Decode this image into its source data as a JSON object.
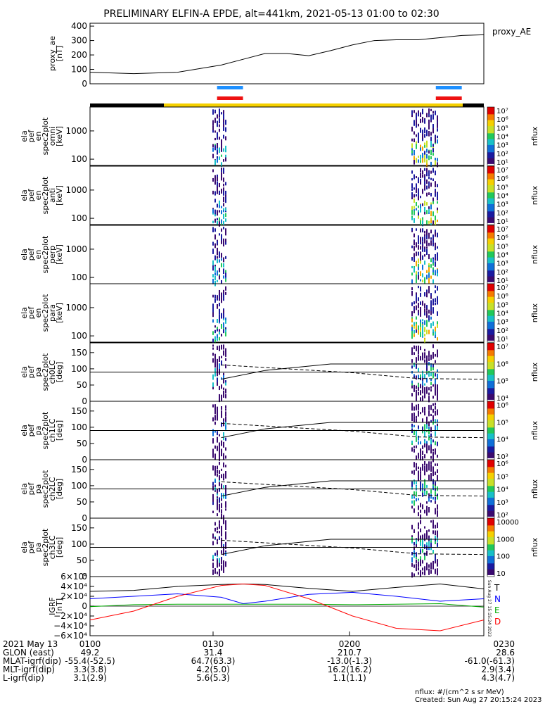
{
  "title": "PRELIMINARY ELFIN-A EPDE, alt=441km, 2021-05-13 01:00 to 02:30",
  "ae_panel": {
    "legend": "proxy_AE",
    "ylabel": [
      "proxy_ae",
      "[nT]"
    ],
    "ticks": [
      "400",
      "300",
      "200",
      "100",
      "0"
    ]
  },
  "energy_panels": [
    {
      "ylabel": [
        "ela",
        "pef",
        "en",
        "spec2plot",
        "omni",
        "[keV]"
      ]
    },
    {
      "ylabel": [
        "ela",
        "pef",
        "en",
        "spec2plot",
        "anti",
        "[keV]"
      ]
    },
    {
      "ylabel": [
        "ela",
        "pef",
        "en",
        "spec2plot",
        "perp",
        "[keV]"
      ]
    },
    {
      "ylabel": [
        "ela",
        "pef",
        "en",
        "spec2plot",
        "para",
        "[keV]"
      ]
    }
  ],
  "energy_ticks": [
    "1000",
    "100"
  ],
  "pa_panels": [
    {
      "ylabel": [
        "ela",
        "pef",
        "pa",
        "spec2plot",
        "ch0LC",
        "[deg]"
      ]
    },
    {
      "ylabel": [
        "ela",
        "pef",
        "pa",
        "spec2plot",
        "ch1LC",
        "[deg]"
      ]
    },
    {
      "ylabel": [
        "ela",
        "pef",
        "pa",
        "spec2plot",
        "ch2LC",
        "[deg]"
      ]
    },
    {
      "ylabel": [
        "ela",
        "pef",
        "pa",
        "spec2plot",
        "ch3LC",
        "[deg]"
      ]
    }
  ],
  "pa_ticks": [
    "150",
    "100",
    "50",
    "0"
  ],
  "colorbar_label": "nflux",
  "colorbars": [
    {
      "ticks": [
        "10⁷",
        "10⁶",
        "10⁵",
        "10⁴",
        "10³",
        "10²",
        "10¹"
      ]
    },
    {
      "ticks": [
        "10⁷",
        "10⁶",
        "10⁵",
        "10⁴",
        "10³",
        "10²",
        "10¹"
      ]
    },
    {
      "ticks": [
        "10⁷",
        "10⁶",
        "10⁵",
        "10⁴",
        "10³",
        "10²",
        "10¹"
      ]
    },
    {
      "ticks": [
        "10⁷",
        "10⁶",
        "10⁵",
        "10⁴",
        "10³",
        "10²",
        "10¹"
      ]
    },
    {
      "ticks": [
        "10⁷",
        "10⁶",
        "10⁵",
        "10⁴"
      ]
    },
    {
      "ticks": [
        "10⁶",
        "10⁵",
        "10⁴",
        "10³"
      ]
    },
    {
      "ticks": [
        "10⁶",
        "10⁵",
        "10⁴",
        "10³",
        "10²"
      ]
    },
    {
      "ticks": [
        "10000",
        "1000",
        "100",
        "10"
      ]
    }
  ],
  "igrf_panel": {
    "ylabel": [
      "IGRF",
      "[nT]"
    ],
    "ticks": [
      "6×10⁴",
      "4×10⁴",
      "2×10⁴",
      "0",
      "−2×10⁴",
      "−4×10⁴",
      "−6×10⁴"
    ],
    "legend": [
      "T",
      "N",
      "E",
      "D"
    ],
    "colors": [
      "#000000",
      "#0000ff",
      "#00aa00",
      "#ff0000"
    ],
    "side_stamp": "Sun Aug 27 15:15:24 2023"
  },
  "footer": {
    "rows": [
      {
        "label": "2021 May 13",
        "values": [
          "0100",
          "0130",
          "0200",
          "0230"
        ]
      },
      {
        "label": "GLON (east)",
        "values": [
          "49.2",
          "31.4",
          "210.7",
          "28.6"
        ]
      },
      {
        "label": "MLAT-igrf(dip)",
        "values": [
          "-55.4(-52.5)",
          "64.7(63.3)",
          "-13.0(-1.3)",
          "-61.0(-61.3)"
        ]
      },
      {
        "label": "MLT-igrf(dip)",
        "values": [
          "3.3(3.8)",
          "4.2(5.0)",
          "16.2(16.2)",
          "2.9(3.4)"
        ]
      },
      {
        "label": "L-igrf(dip)",
        "values": [
          "3.1(2.9)",
          "5.6(5.3)",
          "1.1(1.1)",
          "4.3(4.7)"
        ]
      }
    ],
    "units": "nflux: #/(cm^2 s sr MeV)",
    "created": "Created: Sun Aug 27 20:15:24 2023"
  },
  "chart_data": {
    "type": "line",
    "title": "PRELIMINARY ELFIN-A EPDE, alt=441km, 2021-05-13 01:00 to 02:30",
    "time_range": [
      "2021-05-13 01:00",
      "2021-05-13 02:30"
    ],
    "proxy_ae": {
      "name": "proxy_AE",
      "time_min": [
        0,
        10,
        20,
        30,
        35,
        40,
        45,
        50,
        55,
        60,
        65,
        70,
        75,
        80,
        85,
        90
      ],
      "values_nT": [
        80,
        70,
        80,
        130,
        170,
        210,
        210,
        195,
        230,
        270,
        300,
        305,
        305,
        320,
        335,
        340
      ],
      "ylim": [
        0,
        420
      ]
    },
    "science_zones_min": [
      [
        30,
        34
      ],
      [
        80,
        84
      ]
    ],
    "energy_spectrograms_keV_range": [
      60,
      7000
    ],
    "pitch_angle_range_deg": [
      0,
      180
    ],
    "igrf": {
      "time_min": [
        0,
        10,
        20,
        30,
        35,
        40,
        50,
        60,
        70,
        80,
        90
      ],
      "T": [
        30000,
        32000,
        40000,
        44000,
        45000,
        44000,
        36000,
        30000,
        38000,
        45000,
        35000
      ],
      "N": [
        15000,
        20000,
        25000,
        18000,
        5000,
        10000,
        24000,
        28000,
        20000,
        10000,
        15000
      ],
      "E": [
        -1000,
        3000,
        4000,
        4000,
        4000,
        4000,
        4000,
        3000,
        4000,
        5000,
        -2000
      ],
      "D": [
        -28000,
        -10000,
        20000,
        42000,
        45000,
        42000,
        15000,
        -20000,
        -45000,
        -50000,
        -28000
      ],
      "ylim": [
        -60000,
        60000
      ]
    }
  }
}
